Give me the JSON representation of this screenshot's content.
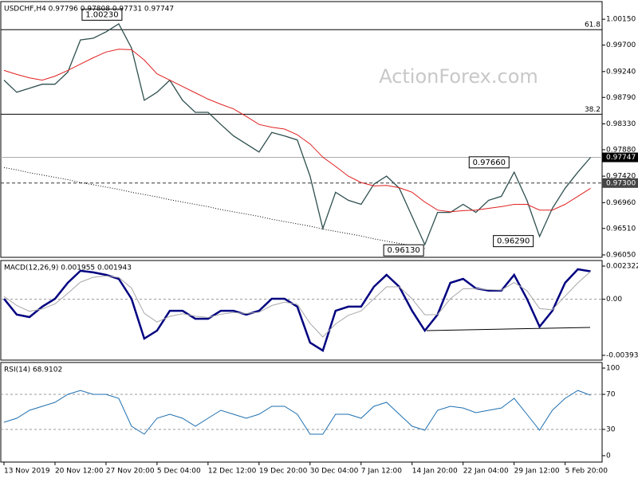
{
  "chart_data": [
    {
      "type": "line",
      "title": "USDCHF,H4  0.97796 0.97808 0.97731 0.97747",
      "watermark": "ActionForex.com",
      "ylim": [
        0.96008,
        1.00457
      ],
      "yticks": [
        {
          "value": 1.0015,
          "label": "1.00150"
        },
        {
          "value": 0.997,
          "label": "0.99700"
        },
        {
          "value": 0.9924,
          "label": "0.99240"
        },
        {
          "value": 0.9879,
          "label": "0.98790"
        },
        {
          "value": 0.9833,
          "label": "0.98330"
        },
        {
          "value": 0.9788,
          "label": "0.97880"
        },
        {
          "value": 0.9742,
          "label": "0.97420"
        },
        {
          "value": 0.9696,
          "label": "0.96960"
        },
        {
          "value": 0.9651,
          "label": "0.96510"
        },
        {
          "value": 0.9605,
          "label": "0.96050"
        }
      ],
      "levels": [
        {
          "value": 0.99969,
          "label": "61.8",
          "kind": "fib"
        },
        {
          "value": 0.98497,
          "label": "38.2",
          "kind": "fib"
        },
        {
          "value": 0.973,
          "label": "0.97300",
          "kind": "mark"
        },
        {
          "value": 0.97747,
          "label": "0.97747",
          "kind": "price"
        }
      ],
      "series": [
        {
          "color": "#2f4f4f",
          "width": 1.3,
          "style": "solid",
          "values": [
            0.9909,
            0.9888,
            0.9895,
            0.9902,
            0.9902,
            0.9923,
            0.9979,
            0.9982,
            0.9993,
            1.0007,
            0.9965,
            0.9874,
            0.9888,
            0.9909,
            0.9874,
            0.9853,
            0.9853,
            0.9832,
            0.9812,
            0.9798,
            0.9784,
            0.9818,
            0.9812,
            0.9805,
            0.9742,
            0.9651,
            0.9714,
            0.97,
            0.9693,
            0.9728,
            0.9742,
            0.9721,
            0.9672,
            0.9623,
            0.9679,
            0.9679,
            0.9693,
            0.9679,
            0.97,
            0.9707,
            0.9749,
            0.97,
            0.9637,
            0.9686,
            0.9721,
            0.9749,
            0.97747
          ]
        },
        {
          "color": "#e02020",
          "width": 1,
          "style": "solid",
          "values": [
            0.9926,
            0.9919,
            0.9913,
            0.9909,
            0.9916,
            0.9926,
            0.9937,
            0.9948,
            0.9958,
            0.9963,
            0.9962,
            0.9944,
            0.992,
            0.9909,
            0.9898,
            0.9887,
            0.9876,
            0.9867,
            0.9859,
            0.9846,
            0.9832,
            0.9827,
            0.9824,
            0.9814,
            0.9798,
            0.9775,
            0.9759,
            0.9742,
            0.9731,
            0.9725,
            0.9726,
            0.9722,
            0.9714,
            0.9697,
            0.9683,
            0.968,
            0.9682,
            0.9683,
            0.9686,
            0.9689,
            0.9693,
            0.9693,
            0.9683,
            0.9683,
            0.9693,
            0.9707,
            0.9721
          ]
        },
        {
          "color": "#000000",
          "width": 1,
          "style": "dotted",
          "values": [
            0.9757,
            0.9753,
            0.9748,
            0.9744,
            0.974,
            0.9736,
            0.9731,
            0.9727,
            0.9723,
            0.9719,
            0.9714,
            0.971,
            0.9706,
            0.9701,
            0.9697,
            0.9693,
            0.9689,
            0.9684,
            0.968,
            0.9676,
            0.9672,
            0.9667,
            0.9663,
            0.9659,
            0.9655,
            0.965,
            0.9646,
            0.9642,
            0.9638,
            0.9633,
            0.9629,
            0.9625,
            0.9621,
            0.9616,
            null,
            null,
            null,
            null,
            null,
            null,
            null,
            null,
            null,
            null,
            null,
            null,
            null
          ]
        }
      ],
      "annotations": [
        {
          "x": 9.25,
          "value": 1.0023,
          "label": "1.00230"
        },
        {
          "x": 39.6,
          "value": 0.9766,
          "label": "0.97660"
        },
        {
          "x": 41.5,
          "value": 0.9629,
          "label": "0.96290"
        },
        {
          "x": 32.9,
          "value": 0.9613,
          "label": "0.96130"
        }
      ]
    },
    {
      "type": "line",
      "title": "MACD(12,26,9) 0.001955 0.001943",
      "ylim": [
        -0.004267,
        0.002713
      ],
      "yticks": [
        0.002322,
        {
          "value": 0,
          "label": "0.00"
        },
        -0.003932
      ],
      "levels": [
        {
          "value": 0,
          "kind": "zero"
        }
      ],
      "series": [
        {
          "color": "#000080",
          "width": 2.5,
          "style": "solid",
          "values": [
            3e-05,
            -0.00108,
            -0.00125,
            -0.00052,
            3e-05,
            0.00115,
            0.00199,
            0.00188,
            0.00171,
            0.00143,
            3e-05,
            -0.00276,
            -0.0022,
            -0.00081,
            -0.00081,
            -0.00137,
            -0.00137,
            -0.00081,
            -0.00081,
            -0.00108,
            -0.00081,
            3e-05,
            3e-05,
            -0.00052,
            -0.00304,
            -0.0036,
            -0.00081,
            -0.00052,
            -0.00052,
            0.00087,
            0.00171,
            0.00087,
            -0.00081,
            -0.0022,
            -0.00108,
            0.00115,
            0.00143,
            0.00076,
            0.0006,
            0.0006,
            0.00171,
            3e-05,
            -0.00192,
            -0.00081,
            0.00115,
            0.0021,
            0.001955
          ]
        },
        {
          "color": "#a8a8a8",
          "width": 1,
          "style": "solid",
          "values": [
            0.0002,
            -0.00044,
            -0.00085,
            -0.00068,
            -0.00033,
            0.00041,
            0.0012,
            0.00154,
            0.00163,
            0.00153,
            0.00078,
            -0.00099,
            -0.0016,
            -0.0012,
            -0.00101,
            -0.00119,
            -0.00128,
            -0.00105,
            -0.00093,
            -0.001,
            -0.00091,
            -0.00044,
            -0.00021,
            -0.00036,
            -0.0017,
            -0.00265,
            -0.00173,
            -0.00113,
            -0.00082,
            3e-05,
            0.00087,
            0.00087,
            3e-05,
            -0.00109,
            -0.00108,
            3e-05,
            0.00073,
            0.00075,
            0.00067,
            0.00064,
            0.00117,
            0.0006,
            -0.00066,
            -0.00074,
            0.00021,
            0.00115,
            0.001943
          ]
        }
      ]
    },
    {
      "type": "line",
      "title": "RSI(14) 68.9102",
      "ylim": [
        -7.3,
        106.4
      ],
      "yticks": [
        100,
        70,
        30,
        0
      ],
      "levels": [
        {
          "value": 70,
          "kind": "zero"
        },
        {
          "value": 30,
          "kind": "zero"
        }
      ],
      "xlim": [
        -0.25,
        46.9
      ],
      "xticks": [
        {
          "value": 0,
          "label": "13 Nov 2019"
        },
        {
          "value": 4,
          "label": "20 Nov 12:00"
        },
        {
          "value": 8,
          "label": "27 Nov 20:00"
        },
        {
          "value": 12,
          "label": "5 Dec 04:00"
        },
        {
          "value": 16,
          "label": "12 Dec 12:00"
        },
        {
          "value": 20,
          "label": "19 Dec 20:00"
        },
        {
          "value": 24,
          "label": "30 Dec 04:00"
        },
        {
          "value": 28,
          "label": "7 Jan 12:00"
        },
        {
          "value": 32,
          "label": "14 Jan 20:00"
        },
        {
          "value": 36,
          "label": "22 Jan 04:00"
        },
        {
          "value": 40,
          "label": "29 Jan 12:00"
        },
        {
          "value": 44,
          "label": "5 Feb 20:00"
        }
      ],
      "series": [
        {
          "color": "#1e6fb0",
          "width": 1,
          "style": "solid",
          "values": [
            38.2,
            42.7,
            51.8,
            56.4,
            60.9,
            70,
            74.5,
            70,
            70,
            65.5,
            33.6,
            24.5,
            42.7,
            47.3,
            42.7,
            33.6,
            42.7,
            51.8,
            47.3,
            42.7,
            47.3,
            56.4,
            56.4,
            47.3,
            24.5,
            24.5,
            47.3,
            47.3,
            42.7,
            56.4,
            60.9,
            47.3,
            33.6,
            29.1,
            51.8,
            56.4,
            54.5,
            49.1,
            51.8,
            54.5,
            65.5,
            47.3,
            29.1,
            51.8,
            65.5,
            74.5,
            68.9102
          ]
        }
      ]
    }
  ]
}
